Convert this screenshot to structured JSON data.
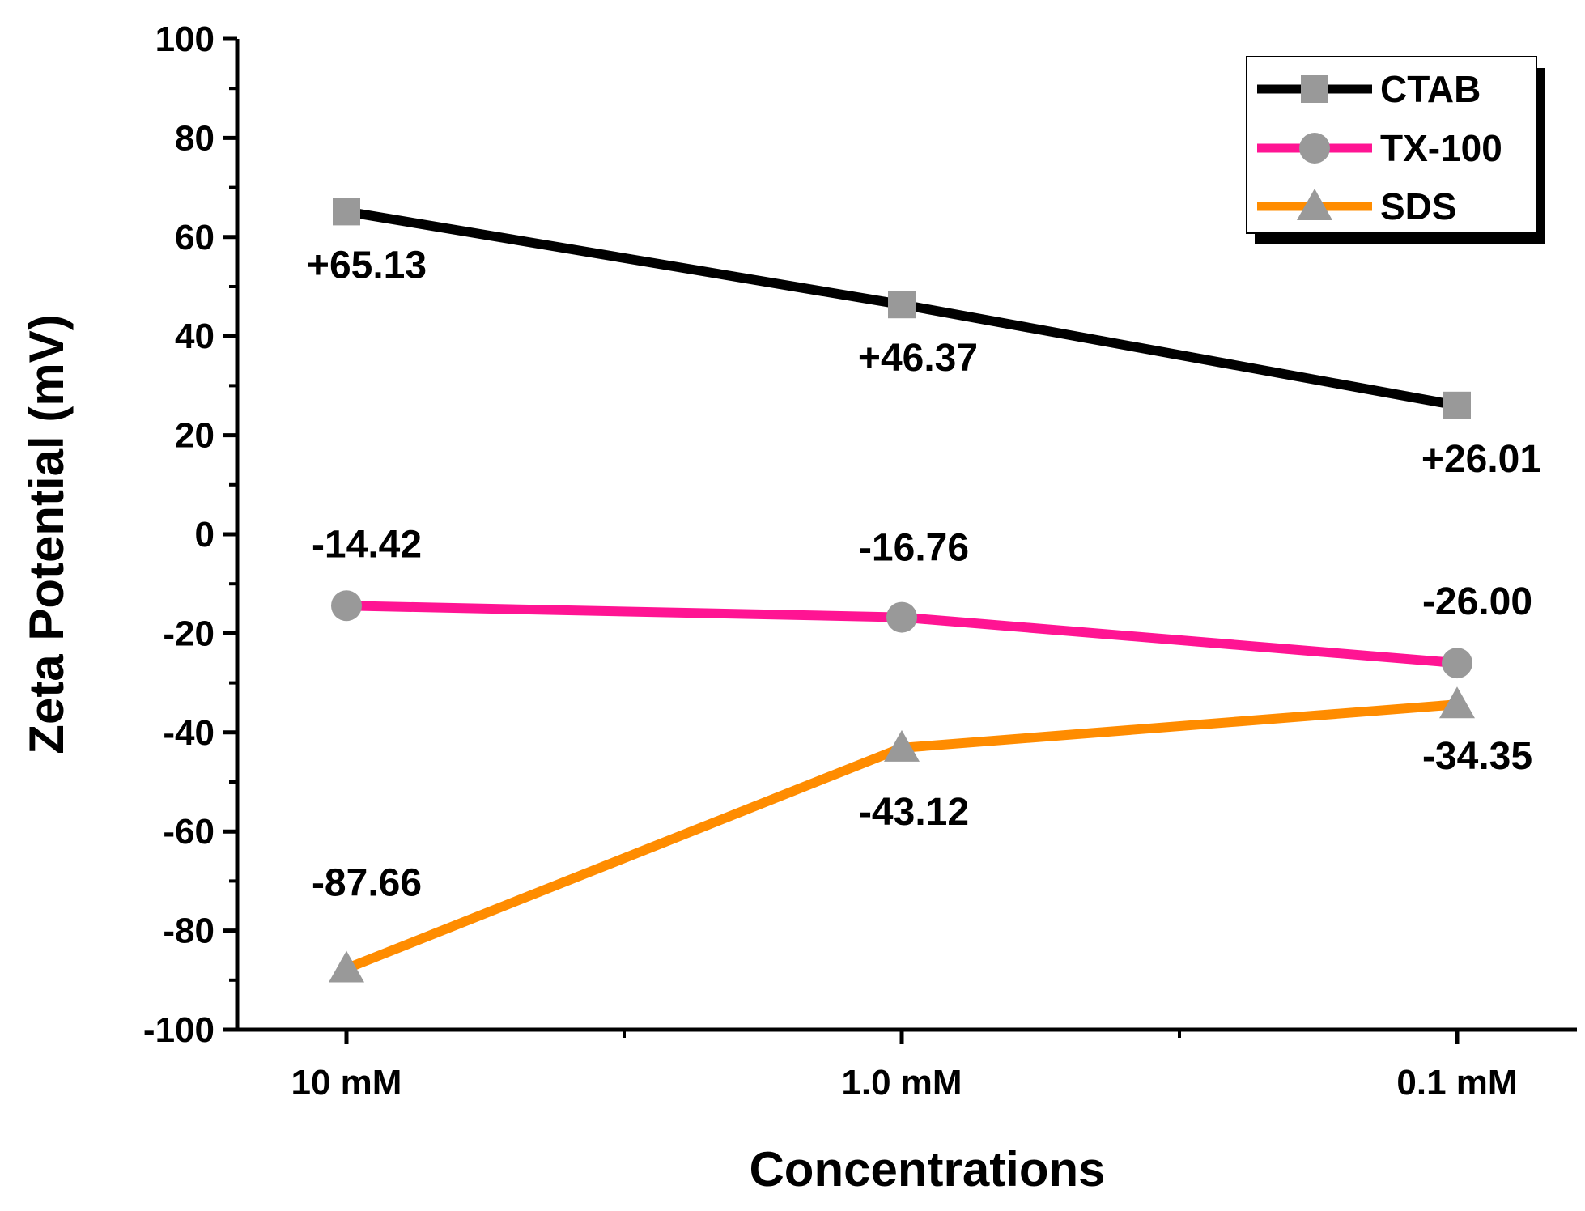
{
  "chart_data": {
    "type": "line",
    "title": "",
    "xlabel": "Concentrations",
    "ylabel": "Zeta Potential (mV)",
    "categories": [
      "10 mM",
      "1.0 mM",
      "0.1 mM"
    ],
    "ylim": [
      -100,
      100
    ],
    "yticks": [
      100,
      80,
      60,
      40,
      20,
      0,
      -20,
      -40,
      -60,
      -80,
      -100
    ],
    "grid": false,
    "legend": "top-right",
    "series": [
      {
        "name": "CTAB",
        "values": [
          65.13,
          46.37,
          26.01
        ],
        "labels": [
          "+65.13",
          "+46.37",
          "+26.01"
        ],
        "color": "#000000",
        "marker": "square",
        "marker_color": "#999999"
      },
      {
        "name": "TX-100",
        "values": [
          -14.42,
          -16.76,
          -26.0
        ],
        "labels": [
          "-14.42",
          "-16.76",
          "-26.00"
        ],
        "color": "#ff1493",
        "marker": "circle",
        "marker_color": "#999999"
      },
      {
        "name": "SDS",
        "values": [
          -87.66,
          -43.12,
          -34.35
        ],
        "labels": [
          "-87.66",
          "-43.12",
          "-34.35"
        ],
        "color": "#ff8c00",
        "marker": "triangle",
        "marker_color": "#999999"
      }
    ]
  }
}
